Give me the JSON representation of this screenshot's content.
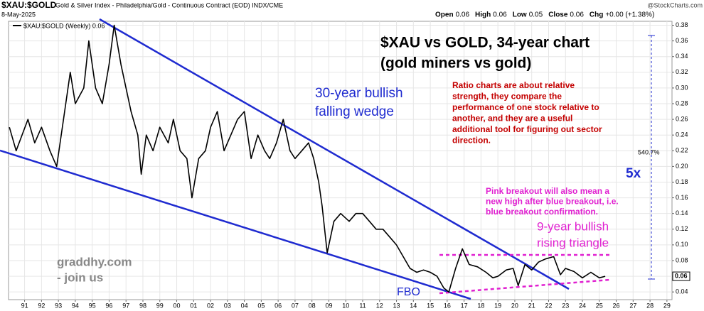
{
  "chart_data": {
    "type": "line",
    "symbol": "$XAU:$GOLD",
    "description": "Gold & Silver Index - Philadelphia/Gold - Continuous Contract (EOD) INDX/CME",
    "source": "@StockCharts.com",
    "date": "8-May-2025",
    "ohlc": [
      {
        "label": "Open",
        "value": 0.06
      },
      {
        "label": "High",
        "value": 0.06
      },
      {
        "label": "Low",
        "value": 0.05
      },
      {
        "label": "Close",
        "value": 0.06
      },
      {
        "label": "Chg",
        "value": "+0.00 (+1.38%)"
      }
    ],
    "title_lines": [
      "$XAU vs GOLD, 34-year chart",
      "(gold miners vs gold)"
    ],
    "wedge_label": [
      "30-year bullish",
      "falling wedge"
    ],
    "note_red": [
      "Ratio charts are about relative",
      "strength, they compare the",
      "performance of one stock relative to",
      "another, and they are a useful",
      "additional tool for figuring out sector",
      "direction."
    ],
    "note_pink": [
      "Pink breakout will also mean a",
      "new high after blue breakout, i.e.",
      "blue breakout confirmation."
    ],
    "triangle_label": [
      "9-year bullish",
      "rising triangle"
    ],
    "promo": [
      "graddhy.com",
      "- join us"
    ],
    "fbo": "FBO",
    "gain_label": "540.7%",
    "multiple_label": "5x",
    "last_value": 0.06,
    "grid": true,
    "xlim": [
      1990.05,
      2029.3
    ],
    "ylim": [
      0.032,
      0.385
    ],
    "xticks": [
      {
        "value": 1991,
        "label": "91"
      },
      {
        "value": 1992,
        "label": "92"
      },
      {
        "value": 1993,
        "label": "93"
      },
      {
        "value": 1994,
        "label": "94"
      },
      {
        "value": 1995,
        "label": "95"
      },
      {
        "value": 1996,
        "label": "96"
      },
      {
        "value": 1997,
        "label": "97"
      },
      {
        "value": 1998,
        "label": "98"
      },
      {
        "value": 1999,
        "label": "99"
      },
      {
        "value": 2000,
        "label": "00"
      },
      {
        "value": 2001,
        "label": "01"
      },
      {
        "value": 2002,
        "label": "02"
      },
      {
        "value": 2003,
        "label": "03"
      },
      {
        "value": 2004,
        "label": "04"
      },
      {
        "value": 2005,
        "label": "05"
      },
      {
        "value": 2006,
        "label": "06"
      },
      {
        "value": 2007,
        "label": "07"
      },
      {
        "value": 2008,
        "label": "08"
      },
      {
        "value": 2009,
        "label": "09"
      },
      {
        "value": 2010,
        "label": "10"
      },
      {
        "value": 2011,
        "label": "11"
      },
      {
        "value": 2012,
        "label": "12"
      },
      {
        "value": 2013,
        "label": "13"
      },
      {
        "value": 2014,
        "label": "14"
      },
      {
        "value": 2015,
        "label": "15"
      },
      {
        "value": 2016,
        "label": "16"
      },
      {
        "value": 2017,
        "label": "17"
      },
      {
        "value": 2018,
        "label": "18"
      },
      {
        "value": 2019,
        "label": "19"
      },
      {
        "value": 2020,
        "label": "20"
      },
      {
        "value": 2021,
        "label": "21"
      },
      {
        "value": 2022,
        "label": "22"
      },
      {
        "value": 2023,
        "label": "23"
      },
      {
        "value": 2024,
        "label": "24"
      },
      {
        "value": 2025,
        "label": "25"
      },
      {
        "value": 2026,
        "label": "26"
      },
      {
        "value": 2027,
        "label": "27"
      },
      {
        "value": 2028,
        "label": "28"
      },
      {
        "value": 2029,
        "label": "29"
      }
    ],
    "yticks": [
      0.04,
      0.06,
      0.08,
      {
        "value": 0.1,
        "label": "0.10"
      },
      0.12,
      0.14,
      0.16,
      0.18,
      {
        "value": 0.2,
        "label": "0.20"
      },
      0.22,
      0.24,
      0.26,
      0.28,
      {
        "value": 0.3,
        "label": "0.30"
      },
      0.32,
      0.34,
      0.36,
      0.38
    ],
    "x": [
      1990.1,
      1990.5,
      1991.2,
      1991.6,
      1992.0,
      1992.5,
      1992.9,
      1993.3,
      1993.7,
      1994.0,
      1994.5,
      1994.8,
      1995.2,
      1995.6,
      1996.0,
      1996.3,
      1996.7,
      1997.0,
      1997.3,
      1997.7,
      1997.9,
      1998.2,
      1998.6,
      1999.0,
      1999.5,
      1999.8,
      2000.2,
      2000.6,
      2000.9,
      2001.3,
      2001.7,
      2002.0,
      2002.4,
      2002.8,
      2003.2,
      2003.6,
      2004.0,
      2004.4,
      2004.8,
      2005.2,
      2005.5,
      2005.9,
      2006.3,
      2006.7,
      2007.0,
      2007.4,
      2007.8,
      2008.1,
      2008.4,
      2008.6,
      2008.9,
      2009.3,
      2009.7,
      2010.2,
      2010.6,
      2011.0,
      2011.4,
      2011.8,
      2012.2,
      2012.6,
      2013.0,
      2013.4,
      2013.8,
      2014.2,
      2014.6,
      2015.0,
      2015.4,
      2015.8,
      2016.1,
      2016.5,
      2016.9,
      2017.3,
      2017.8,
      2018.3,
      2018.7,
      2019.0,
      2019.5,
      2019.9,
      2020.2,
      2020.6,
      2021.0,
      2021.4,
      2021.8,
      2022.3,
      2022.7,
      2023.0,
      2023.5,
      2024.0,
      2024.5,
      2025.0,
      2025.35
    ],
    "series": [
      {
        "name": "$XAU:$GOLD (Weekly) 0.06",
        "color": "#000000",
        "values": [
          0.25,
          0.22,
          0.26,
          0.23,
          0.25,
          0.22,
          0.2,
          0.26,
          0.32,
          0.28,
          0.3,
          0.36,
          0.3,
          0.28,
          0.33,
          0.38,
          0.33,
          0.3,
          0.27,
          0.24,
          0.19,
          0.24,
          0.22,
          0.25,
          0.23,
          0.26,
          0.22,
          0.21,
          0.16,
          0.21,
          0.22,
          0.25,
          0.27,
          0.22,
          0.24,
          0.26,
          0.27,
          0.21,
          0.24,
          0.22,
          0.21,
          0.23,
          0.26,
          0.22,
          0.21,
          0.22,
          0.23,
          0.21,
          0.18,
          0.15,
          0.09,
          0.13,
          0.14,
          0.13,
          0.14,
          0.14,
          0.13,
          0.12,
          0.12,
          0.11,
          0.1,
          0.085,
          0.07,
          0.065,
          0.068,
          0.065,
          0.06,
          0.045,
          0.04,
          0.07,
          0.095,
          0.075,
          0.072,
          0.065,
          0.058,
          0.06,
          0.068,
          0.07,
          0.048,
          0.075,
          0.068,
          0.078,
          0.082,
          0.085,
          0.062,
          0.07,
          0.066,
          0.058,
          0.065,
          0.058,
          0.06
        ]
      }
    ]
  }
}
